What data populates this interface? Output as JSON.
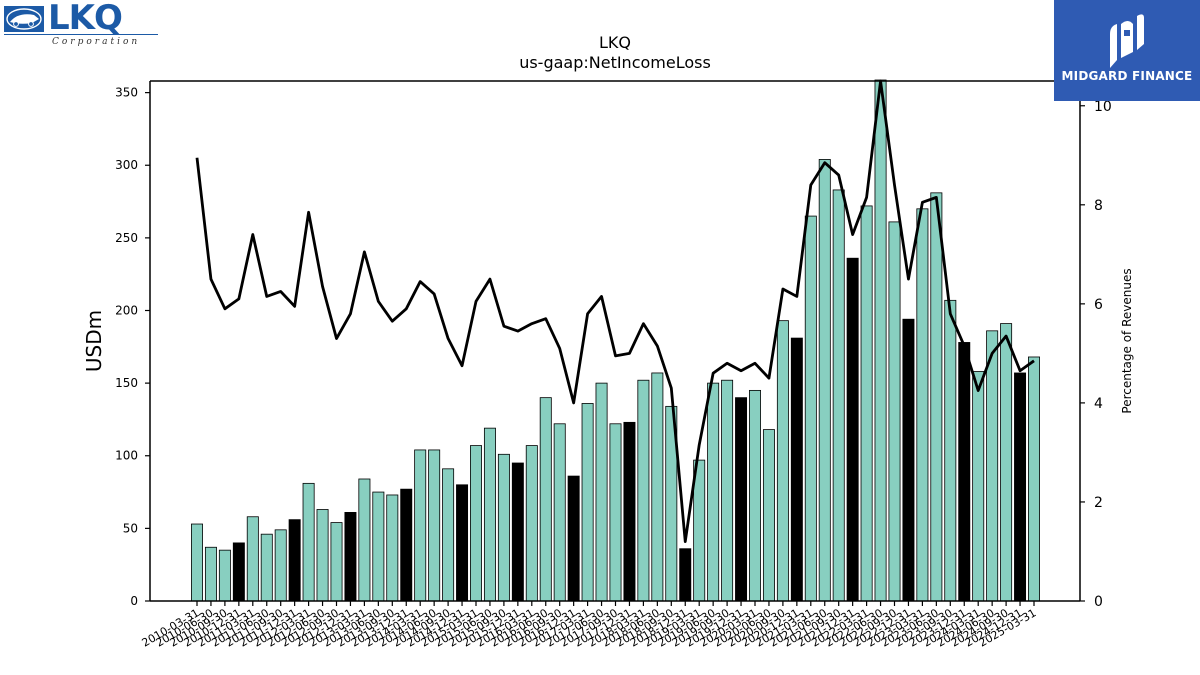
{
  "logo": {
    "wordmark": "LKQ",
    "tagline": "Corporation"
  },
  "badge": {
    "text": "MIDGARD FINANCE"
  },
  "chart_data": {
    "type": "bar",
    "title": "LKQ",
    "subtitle": "us-gaap:NetIncomeLoss",
    "ylabel": "USDm",
    "y2label": "Percentage of Revenues",
    "ylim": [
      0,
      358
    ],
    "y2lim": [
      0,
      10.5
    ],
    "yticks": [
      0,
      50,
      100,
      150,
      200,
      250,
      300,
      350
    ],
    "y2ticks": [
      0,
      2,
      4,
      6,
      8,
      10
    ],
    "colors": {
      "quarter": "#88cfc0",
      "annual": "#000000",
      "line": "#000000"
    },
    "categories": [
      "2010-03-31",
      "2010-06-30",
      "2010-09-30",
      "2010-12-31",
      "2011-03-31",
      "2011-06-30",
      "2011-09-30",
      "2011-12-31",
      "2012-03-31",
      "2012-06-30",
      "2012-09-30",
      "2012-12-31",
      "2013-03-31",
      "2013-06-30",
      "2013-09-30",
      "2013-12-31",
      "2014-03-31",
      "2014-06-30",
      "2014-09-30",
      "2014-12-31",
      "2015-03-31",
      "2015-06-30",
      "2015-09-30",
      "2015-12-31",
      "2016-03-31",
      "2016-06-30",
      "2016-09-30",
      "2016-12-31",
      "2017-03-31",
      "2017-06-30",
      "2017-09-30",
      "2017-12-31",
      "2018-03-31",
      "2018-06-30",
      "2018-09-30",
      "2018-12-31",
      "2019-03-31",
      "2019-06-30",
      "2019-09-30",
      "2019-12-31",
      "2020-03-31",
      "2020-06-30",
      "2020-09-30",
      "2020-12-31",
      "2021-03-31",
      "2021-06-30",
      "2021-09-30",
      "2021-12-31",
      "2022-03-31",
      "2022-06-30",
      "2022-09-30",
      "2022-12-31",
      "2023-03-31",
      "2023-06-30",
      "2023-09-30",
      "2023-12-31",
      "2024-03-31",
      "2024-06-30",
      "2024-09-30",
      "2024-12-31",
      "2025-03-31"
    ],
    "series": [
      {
        "kind": "bar",
        "values": [
          53,
          37,
          35,
          40,
          58,
          46,
          49,
          56,
          81,
          63,
          54,
          61,
          84,
          75,
          73,
          77,
          104,
          104,
          91,
          80,
          107,
          119,
          101,
          95,
          107,
          140,
          122,
          86,
          136,
          150,
          122,
          123,
          152,
          157,
          134,
          36,
          97,
          150,
          152,
          140,
          145,
          118,
          193,
          181,
          265,
          304,
          283,
          236,
          272,
          360,
          261,
          194,
          270,
          281,
          207,
          178,
          158,
          186,
          191,
          157,
          168
        ],
        "highlight": [
          false,
          false,
          false,
          true,
          false,
          false,
          false,
          true,
          false,
          false,
          false,
          true,
          false,
          false,
          false,
          true,
          false,
          false,
          false,
          true,
          false,
          false,
          false,
          true,
          false,
          false,
          false,
          true,
          false,
          false,
          false,
          true,
          false,
          false,
          false,
          true,
          false,
          false,
          false,
          true,
          false,
          false,
          false,
          true,
          false,
          false,
          false,
          true,
          false,
          false,
          false,
          true,
          false,
          false,
          false,
          true,
          false,
          false,
          false,
          true,
          false
        ]
      },
      {
        "kind": "line",
        "axis": "right",
        "values": [
          8.95,
          6.5,
          5.9,
          6.1,
          7.4,
          6.15,
          6.25,
          5.95,
          7.85,
          6.35,
          5.3,
          5.8,
          7.05,
          6.05,
          5.65,
          5.9,
          6.45,
          6.2,
          5.3,
          4.75,
          6.05,
          6.5,
          5.55,
          5.45,
          5.6,
          5.7,
          5.1,
          4.0,
          5.8,
          6.15,
          4.95,
          5.0,
          5.6,
          5.15,
          4.3,
          1.2,
          3.15,
          4.6,
          4.8,
          4.65,
          4.8,
          4.5,
          6.3,
          6.15,
          8.4,
          8.85,
          8.6,
          7.4,
          8.15,
          10.5,
          8.4,
          6.5,
          8.05,
          8.15,
          5.8,
          5.15,
          4.25,
          5.0,
          5.35,
          4.65,
          4.85
        ]
      }
    ]
  }
}
